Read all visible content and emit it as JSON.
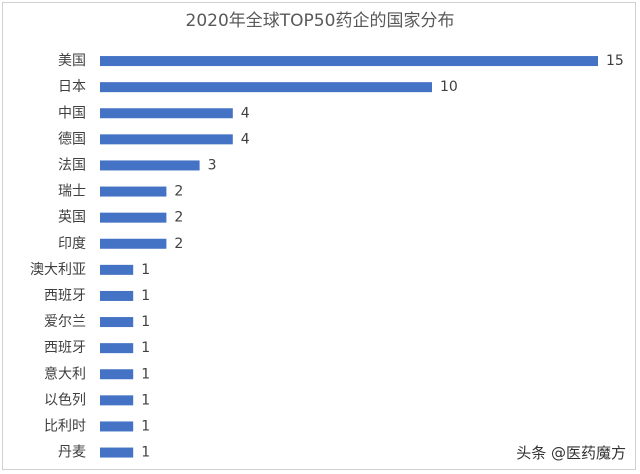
{
  "chart_data": {
    "type": "bar",
    "orientation": "horizontal",
    "title": "2020年全球TOP50药企的国家分布",
    "categories": [
      "美国",
      "日本",
      "中国",
      "德国",
      "法国",
      "瑞士",
      "英国",
      "印度",
      "澳大利亚",
      "西班牙",
      "爱尔兰",
      "西班牙",
      "意大利",
      "以色列",
      "比利时",
      "丹麦"
    ],
    "values": [
      15,
      10,
      4,
      4,
      3,
      2,
      2,
      2,
      1,
      1,
      1,
      1,
      1,
      1,
      1,
      1
    ],
    "xlabel": "",
    "ylabel": "",
    "xlim": [
      0,
      15
    ],
    "grid": false,
    "data_labels": true,
    "bar_color": "#4472c4"
  },
  "watermark": "头条 @医药魔方"
}
